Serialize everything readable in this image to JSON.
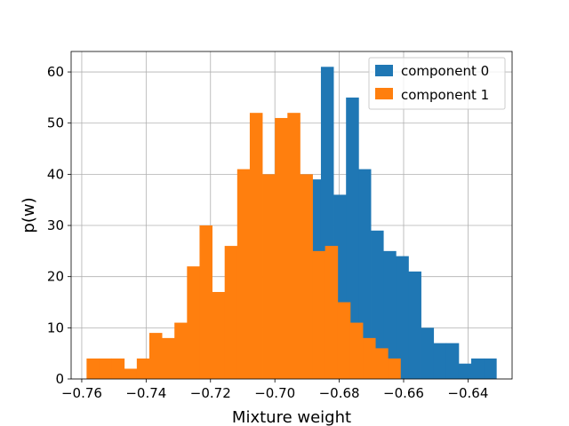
{
  "chart_data": {
    "type": "bar",
    "xlabel": "Mixture weight",
    "ylabel": "p(w)",
    "xlim": [
      -0.7633,
      -0.6263
    ],
    "ylim": [
      0,
      64
    ],
    "grid": true,
    "legend_position": "top-right",
    "xticks": [
      "−0.76",
      "−0.74",
      "−0.72",
      "−0.70",
      "−0.68",
      "−0.66",
      "−0.64"
    ],
    "xtick_values": [
      -0.76,
      -0.74,
      -0.72,
      -0.7,
      -0.68,
      -0.66,
      -0.64
    ],
    "yticks": [
      "0",
      "10",
      "20",
      "30",
      "40",
      "50",
      "60"
    ],
    "ytick_values": [
      0,
      10,
      20,
      30,
      40,
      50,
      60
    ],
    "series": [
      {
        "name": "component 0",
        "color": "#1f77b4",
        "bins": [
          [
            -0.6935,
            -0.6896,
            36
          ],
          [
            -0.6896,
            -0.6857,
            39
          ],
          [
            -0.6857,
            -0.6818,
            61
          ],
          [
            -0.6818,
            -0.6779,
            36
          ],
          [
            -0.6779,
            -0.674,
            55
          ],
          [
            -0.674,
            -0.6702,
            41
          ],
          [
            -0.6702,
            -0.6663,
            29
          ],
          [
            -0.6663,
            -0.6624,
            25
          ],
          [
            -0.6624,
            -0.6585,
            24
          ],
          [
            -0.6585,
            -0.6546,
            21
          ],
          [
            -0.6546,
            -0.6507,
            10
          ],
          [
            -0.6507,
            -0.6468,
            7
          ],
          [
            -0.6468,
            -0.6429,
            7
          ],
          [
            -0.6429,
            -0.639,
            3
          ],
          [
            -0.639,
            -0.6351,
            4
          ],
          [
            -0.6351,
            -0.6312,
            4
          ]
        ]
      },
      {
        "name": "component 1",
        "color": "#ff7f0e",
        "bins": [
          [
            -0.7585,
            -0.7546,
            4
          ],
          [
            -0.7546,
            -0.7507,
            4
          ],
          [
            -0.7507,
            -0.7468,
            4
          ],
          [
            -0.7468,
            -0.7429,
            2
          ],
          [
            -0.7429,
            -0.739,
            4
          ],
          [
            -0.739,
            -0.7351,
            9
          ],
          [
            -0.7351,
            -0.7312,
            8
          ],
          [
            -0.7312,
            -0.7273,
            11
          ],
          [
            -0.7273,
            -0.7234,
            22
          ],
          [
            -0.7234,
            -0.7195,
            30
          ],
          [
            -0.7195,
            -0.7156,
            17
          ],
          [
            -0.7156,
            -0.7117,
            26
          ],
          [
            -0.7117,
            -0.7078,
            41
          ],
          [
            -0.7078,
            -0.7039,
            52
          ],
          [
            -0.7039,
            -0.7,
            40
          ],
          [
            -0.7,
            -0.6961,
            51
          ],
          [
            -0.6961,
            -0.6922,
            52
          ],
          [
            -0.6922,
            -0.6883,
            40
          ],
          [
            -0.6883,
            -0.6844,
            25
          ],
          [
            -0.6844,
            -0.6805,
            26
          ],
          [
            -0.6805,
            -0.6766,
            15
          ],
          [
            -0.6766,
            -0.6727,
            11
          ],
          [
            -0.6727,
            -0.6688,
            8
          ],
          [
            -0.6688,
            -0.6649,
            6
          ],
          [
            -0.6649,
            -0.661,
            4
          ]
        ]
      }
    ]
  }
}
